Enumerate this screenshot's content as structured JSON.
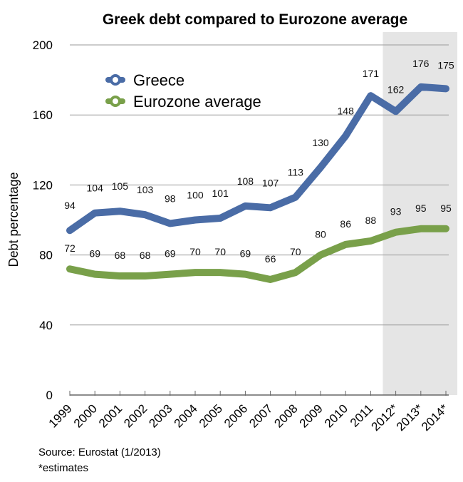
{
  "chart_data": {
    "type": "line",
    "title": "Greek debt compared to Eurozone average",
    "xlabel": "",
    "ylabel": "Debt percentage",
    "ylim": [
      0,
      200
    ],
    "yticks": [
      "0",
      "40",
      "80",
      "120",
      "160",
      "200"
    ],
    "categories": [
      "1999",
      "2000",
      "2001",
      "2002",
      "2003",
      "2004",
      "2005",
      "2006",
      "2007",
      "2008",
      "2009",
      "2010",
      "2011",
      "2012*",
      "2013*",
      "2014*"
    ],
    "shaded_categories": [
      "2012*",
      "2013*",
      "2014*"
    ],
    "grid": true,
    "legend_position": "top-left",
    "series": [
      {
        "name": "Greece",
        "color": "#4a6ca6",
        "values": [
          94,
          104,
          105,
          103,
          98,
          100,
          101,
          108,
          107,
          113,
          130,
          148,
          171,
          162,
          176,
          175
        ],
        "labels": [
          "94",
          "104",
          "105",
          "103",
          "98",
          "100",
          "101",
          "108",
          "107",
          "113",
          "130",
          "148",
          "171",
          "162",
          "176",
          "175"
        ]
      },
      {
        "name": "Eurozone average",
        "color": "#79a04a",
        "values": [
          72,
          69,
          68,
          68,
          69,
          70,
          70,
          69,
          66,
          70,
          80,
          86,
          88,
          93,
          95,
          95
        ],
        "labels": [
          "72",
          "69",
          "68",
          "68",
          "69",
          "70",
          "70",
          "69",
          "66",
          "70",
          "80",
          "86",
          "88",
          "93",
          "95",
          "95"
        ]
      }
    ]
  },
  "footer": {
    "source": "Source: Eurostat (1/2013)",
    "note": "*estimates"
  }
}
